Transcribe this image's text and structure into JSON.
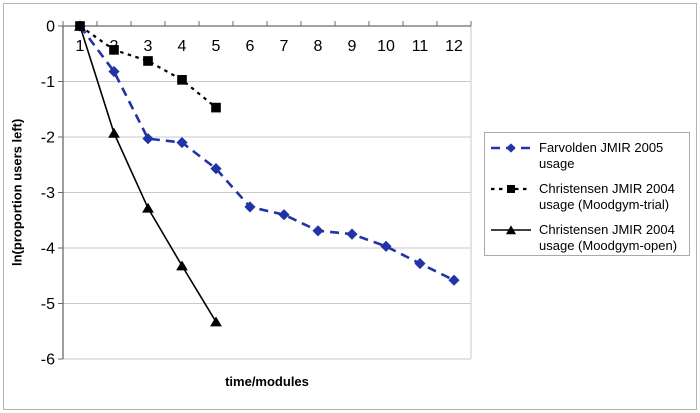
{
  "chart_data": {
    "type": "line",
    "x": [
      1,
      2,
      3,
      4,
      5,
      6,
      7,
      8,
      9,
      10,
      11,
      12
    ],
    "yticks": [
      0,
      -1,
      -2,
      -3,
      -4,
      -5,
      -6
    ],
    "ylim": [
      -6,
      0
    ],
    "xlabel": "time/modules",
    "ylabel": "ln(proportion users left)",
    "grid": true,
    "legend_position": "right",
    "series": [
      {
        "name": "Farvolden JMIR 2005 usage",
        "color": "#2233a5",
        "marker": "diamond",
        "dash": "dashed",
        "values": [
          0,
          -0.82,
          -2.03,
          -2.1,
          -2.57,
          -3.26,
          -3.4,
          -3.69,
          -3.75,
          -3.97,
          -4.28,
          -4.58
        ]
      },
      {
        "name": "Christensen JMIR 2004 usage (Moodgym-trial)",
        "color": "#000000",
        "marker": "square",
        "dash": "dotted",
        "values": [
          0,
          -0.43,
          -0.63,
          -0.97,
          -1.47
        ]
      },
      {
        "name": "Christensen JMIR 2004 usage (Moodgym-open)",
        "color": "#000000",
        "marker": "triangle",
        "dash": "solid",
        "values": [
          0,
          -1.93,
          -3.28,
          -4.32,
          -5.33
        ]
      }
    ],
    "colors": {
      "gridline": "#c9c9c9",
      "axis": "#6b6b6b",
      "plot_border": "#c9c9c9",
      "tick_label": "#000000"
    }
  }
}
